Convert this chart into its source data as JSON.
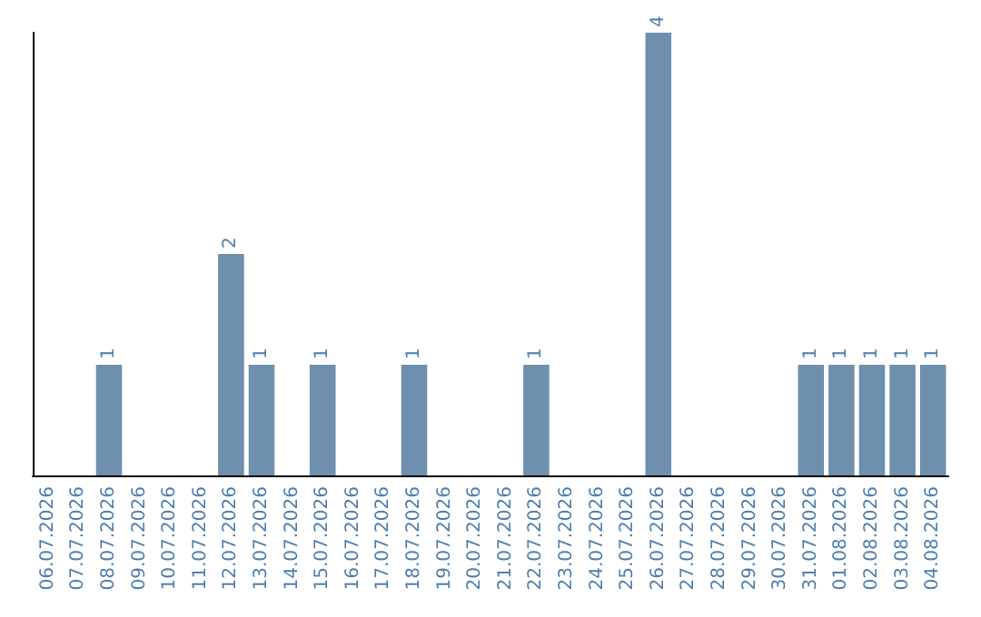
{
  "chart_data": {
    "type": "bar",
    "categories": [
      "06.07.2026",
      "07.07.2026",
      "08.07.2026",
      "09.07.2026",
      "10.07.2026",
      "11.07.2026",
      "12.07.2026",
      "13.07.2026",
      "14.07.2026",
      "15.07.2026",
      "16.07.2026",
      "17.07.2026",
      "18.07.2026",
      "19.07.2026",
      "20.07.2026",
      "21.07.2026",
      "22.07.2026",
      "23.07.2026",
      "24.07.2026",
      "25.07.2026",
      "26.07.2026",
      "27.07.2026",
      "28.07.2026",
      "29.07.2026",
      "30.07.2026",
      "31.07.2026",
      "01.08.2026",
      "02.08.2026",
      "03.08.2026",
      "04.08.2026"
    ],
    "values": [
      0,
      0,
      1,
      0,
      0,
      0,
      2,
      1,
      0,
      1,
      0,
      0,
      1,
      0,
      0,
      0,
      1,
      0,
      0,
      0,
      4,
      0,
      0,
      0,
      0,
      1,
      1,
      1,
      1,
      1
    ],
    "value_labels": [
      null,
      null,
      "1",
      null,
      null,
      null,
      "2",
      "1",
      null,
      "1",
      null,
      null,
      "1",
      null,
      null,
      null,
      "1",
      null,
      null,
      null,
      "4",
      null,
      null,
      null,
      null,
      "1",
      "1",
      "1",
      "1",
      "1"
    ],
    "color": "#6e8fae",
    "grid": false,
    "tick_labels": "x"
  }
}
